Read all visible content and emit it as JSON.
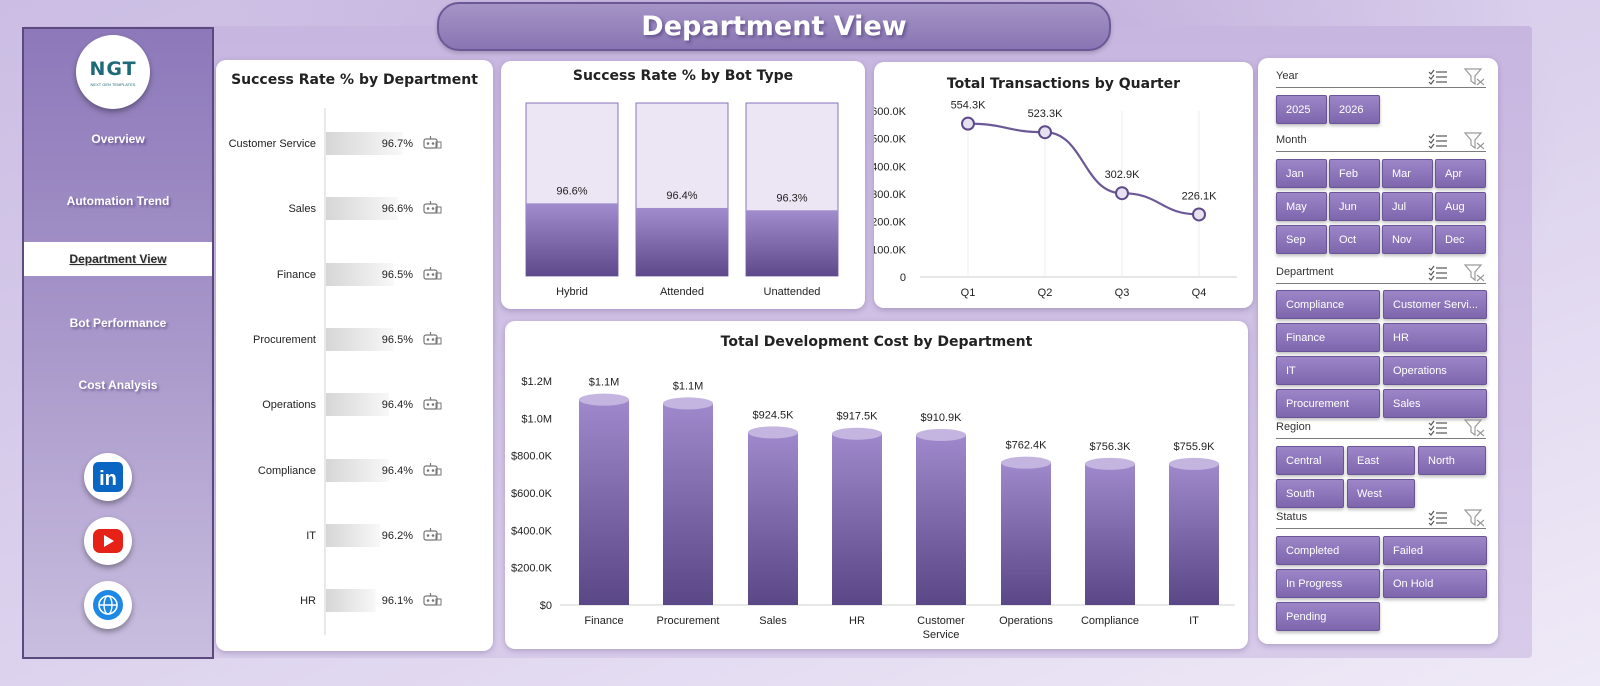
{
  "header": {
    "title": "Department View"
  },
  "logo": {
    "text": "NGT",
    "subtext": "NEXT GEN TEMPLATES"
  },
  "nav": {
    "items": [
      {
        "label": "Overview",
        "active": false
      },
      {
        "label": "Automation Trend",
        "active": false
      },
      {
        "label": "Department View",
        "active": true
      },
      {
        "label": "Bot Performance",
        "active": false
      },
      {
        "label": "Cost Analysis",
        "active": false
      }
    ]
  },
  "social": {
    "linkedin": "in"
  },
  "colors": {
    "accent": "#8a74bd",
    "accent_dark": "#5e4a8a",
    "linkedin": "#0a66c2",
    "youtube": "#e62117",
    "web": "#1e88e5"
  },
  "icons": {
    "robot": "robot-icon",
    "multi_select": "multi-select-icon",
    "clear_filter": "clear-filter-icon"
  },
  "charts": {
    "dept_success": {
      "title": "Success Rate % by Department",
      "chart_data": {
        "type": "bar",
        "orientation": "horizontal",
        "title": "Success Rate % by Department",
        "categories": [
          "Customer Service",
          "Sales",
          "Finance",
          "Procurement",
          "Operations",
          "Compliance",
          "IT",
          "HR"
        ],
        "values": [
          96.7,
          96.6,
          96.5,
          96.5,
          96.4,
          96.4,
          96.2,
          96.1
        ],
        "value_labels": [
          "96.7%",
          "96.6%",
          "96.5%",
          "96.5%",
          "96.4%",
          "96.4%",
          "96.2%",
          "96.1%"
        ],
        "unit": "%"
      }
    },
    "bot_type": {
      "title": "Success Rate % by Bot Type",
      "chart_data": {
        "type": "bar",
        "title": "Success Rate % by Bot Type",
        "categories": [
          "Hybrid",
          "Attended",
          "Unattended"
        ],
        "values": [
          96.6,
          96.4,
          96.3
        ],
        "value_labels": [
          "96.6%",
          "96.4%",
          "96.3%"
        ],
        "unit": "%"
      }
    },
    "quarterly": {
      "title": "Total Transactions by Quarter",
      "chart_data": {
        "type": "line",
        "title": "Total Transactions by Quarter",
        "categories": [
          "Q1",
          "Q2",
          "Q3",
          "Q4"
        ],
        "values": [
          554300,
          523300,
          302900,
          226100
        ],
        "value_labels": [
          "554.3K",
          "523.3K",
          "302.9K",
          "226.1K"
        ],
        "ylim": [
          0,
          600000
        ],
        "y_ticks": [
          0,
          100000,
          200000,
          300000,
          400000,
          500000,
          600000
        ],
        "y_tick_labels": [
          "0",
          "100.0K",
          "200.0K",
          "300.0K",
          "400.0K",
          "500.0K",
          "600.0K"
        ],
        "grid": true
      }
    },
    "dev_cost": {
      "title": "Total Development Cost by Department",
      "chart_data": {
        "type": "bar",
        "title": "Total Development Cost by Department",
        "categories": [
          "Finance",
          "Procurement",
          "Sales",
          "HR",
          "Customer Service",
          "Operations",
          "Compliance",
          "IT"
        ],
        "values": [
          1100000,
          1080000,
          924500,
          917500,
          910900,
          762400,
          756300,
          755900
        ],
        "value_labels": [
          "$1.1M",
          "$1.1M",
          "$924.5K",
          "$917.5K",
          "$910.9K",
          "$762.4K",
          "$756.3K",
          "$755.9K"
        ],
        "ylim": [
          0,
          1200000
        ],
        "y_ticks": [
          0,
          200000,
          400000,
          600000,
          800000,
          1000000,
          1200000
        ],
        "y_tick_labels": [
          "$0",
          "$200.0K",
          "$400.0K",
          "$600.0K",
          "$800.0K",
          "$1.0M",
          "$1.2M"
        ]
      }
    }
  },
  "slicers": {
    "year": {
      "label": "Year",
      "options": [
        "2025",
        "2026"
      ]
    },
    "month": {
      "label": "Month",
      "options": [
        "Jan",
        "Feb",
        "Mar",
        "Apr",
        "May",
        "Jun",
        "Jul",
        "Aug",
        "Sep",
        "Oct",
        "Nov",
        "Dec"
      ]
    },
    "department": {
      "label": "Department",
      "options": [
        "Compliance",
        "Customer Servi...",
        "Finance",
        "HR",
        "IT",
        "Operations",
        "Procurement",
        "Sales"
      ]
    },
    "region": {
      "label": "Region",
      "options": [
        "Central",
        "East",
        "North",
        "South",
        "West"
      ]
    },
    "status": {
      "label": "Status",
      "options": [
        "Completed",
        "Failed",
        "In Progress",
        "On Hold",
        "Pending"
      ]
    }
  }
}
